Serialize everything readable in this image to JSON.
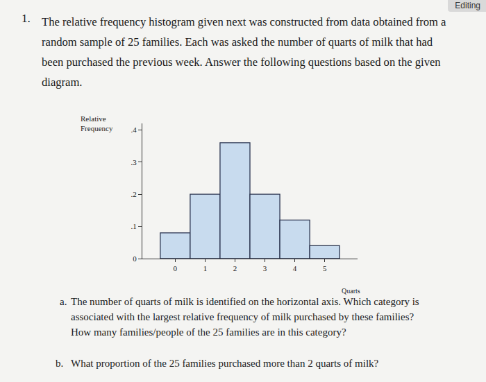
{
  "header": {
    "status": "Editing"
  },
  "question": {
    "number": "1.",
    "lines": [
      "The relative frequency histogram given next was constructed from data obtained from a",
      "random sample of 25 families. Each was asked the number of quarts of milk that had",
      "been purchased the previous week. Answer the following questions based on the given",
      "diagram."
    ]
  },
  "chart_data": {
    "type": "histogram",
    "y_label": "Relative Frequency",
    "x_label": "Quarts",
    "bins": [
      -0.5,
      0.5,
      1.5,
      2.5,
      3.5,
      4.5,
      5.5
    ],
    "values": [
      0.08,
      0.2,
      0.36,
      0.2,
      0.12,
      0.04
    ],
    "color": "#c8dbee",
    "xlim": [
      -1.1,
      6.1
    ],
    "xticks": [
      0,
      1,
      2,
      3,
      4,
      5
    ],
    "ylim": [
      0,
      0.42
    ],
    "yticks": [
      0,
      {
        "value": 0.1,
        "label": ".1"
      },
      {
        "value": 0.2,
        "label": ".2"
      },
      {
        "value": 0.3,
        "label": ".3"
      },
      {
        "value": 0.4,
        "label": ".4"
      }
    ],
    "grid": false
  },
  "parts": [
    {
      "label": "a.",
      "lines": [
        "The number of quarts of milk is identified on the horizontal axis. Which category is",
        "associated with the largest relative frequency of milk purchased by these families?",
        "How many families/people of the 25 families are in this category?"
      ]
    },
    {
      "label": "b.",
      "lines": [
        "What proportion of the 25 families purchased more than 2 quarts of milk?"
      ]
    }
  ]
}
